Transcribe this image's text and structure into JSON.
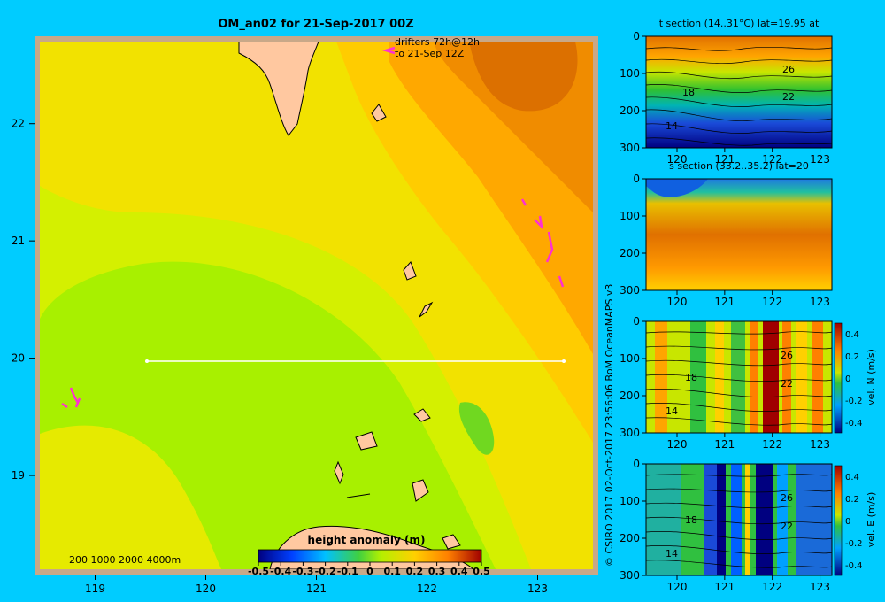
{
  "chart_data": [
    {
      "type": "heatmap",
      "title": "OM_an02 for 21-Sep-2017 00Z",
      "x_ticks": [
        "119",
        "120",
        "121",
        "122",
        "123"
      ],
      "y_ticks": [
        "22",
        "21",
        "20",
        "19"
      ],
      "xlim": [
        118.5,
        123.5
      ],
      "ylim": [
        18.2,
        22.7
      ],
      "annotations": [
        "drifters 72h@12h",
        "to 21-Sep 12Z",
        "200  1000  2000  4000m"
      ],
      "section_line": {
        "lon": [
          119.5,
          123.2
        ],
        "lat": 20
      },
      "colorbar": {
        "label": "height anomaly  (m)",
        "ticks": [
          "-0.5",
          "-0.4",
          "-0.3",
          "-0.2",
          "-0.1",
          "0",
          "0.1",
          "0.2",
          "0.3",
          "0.4",
          "0.5"
        ],
        "range": [
          -0.5,
          0.5
        ]
      }
    },
    {
      "type": "heatmap",
      "title": "t section (14..31°C) lat=19.95 at",
      "x_ticks": [
        "120",
        "121",
        "122",
        "123"
      ],
      "y_ticks": [
        "0",
        "100",
        "200",
        "300"
      ],
      "contour_labels": [
        "26",
        "18",
        "22",
        "14"
      ]
    },
    {
      "type": "heatmap",
      "title": "s section (33.2..35.2) lat=20",
      "x_ticks": [
        "120",
        "121",
        "122",
        "123"
      ],
      "y_ticks": [
        "0",
        "100",
        "200",
        "300"
      ]
    },
    {
      "type": "heatmap",
      "x_ticks": [
        "120",
        "121",
        "122",
        "123"
      ],
      "y_ticks": [
        "0",
        "100",
        "200",
        "300"
      ],
      "contour_labels": [
        "26",
        "18",
        "22",
        "14"
      ],
      "colorbar": {
        "label": "vel. N  (m/s)",
        "ticks": [
          "0.4",
          "0.2",
          "0",
          "-0.2",
          "-0.4"
        ]
      }
    },
    {
      "type": "heatmap",
      "x_ticks": [
        "120",
        "121",
        "122",
        "123"
      ],
      "y_ticks": [
        "0",
        "100",
        "200",
        "300"
      ],
      "contour_labels": [
        "26",
        "18",
        "22",
        "14"
      ],
      "colorbar": {
        "label": "vel. E  (m/s)",
        "ticks": [
          "0.4",
          "0.2",
          "0",
          "-0.2",
          "-0.4"
        ]
      }
    }
  ],
  "credit": "© CSIRO 2017   02-Oct-2017 23:56:06 BoM OceanMAPS v3"
}
